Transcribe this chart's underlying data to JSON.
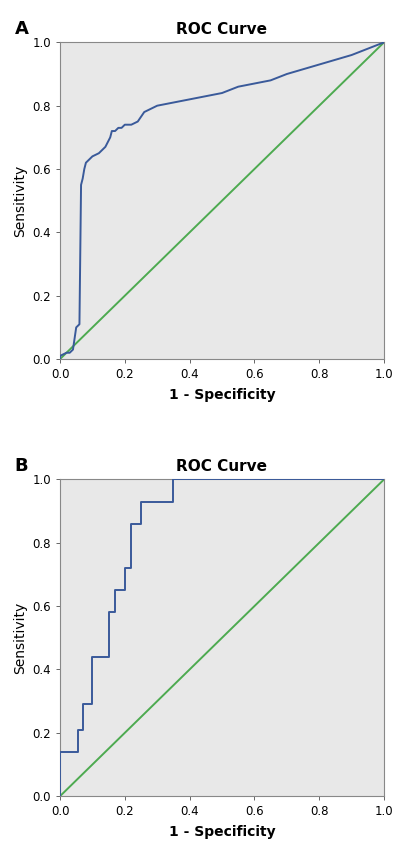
{
  "title": "ROC Curve",
  "xlabel": "1 - Specificity",
  "ylabel": "Sensitivity",
  "bg_color": "#e8e8e8",
  "curve_color": "#3a5a9a",
  "diag_color": "#4daa50",
  "curve_linewidth": 1.4,
  "diag_linewidth": 1.4,
  "label_A": "A",
  "label_B": "B",
  "roc_A_x": [
    0.0,
    0.0,
    0.02,
    0.03,
    0.04,
    0.05,
    0.06,
    0.065,
    0.07,
    0.075,
    0.08,
    0.09,
    0.1,
    0.12,
    0.14,
    0.155,
    0.16,
    0.17,
    0.18,
    0.19,
    0.2,
    0.22,
    0.24,
    0.26,
    0.28,
    0.3,
    0.35,
    0.4,
    0.45,
    0.5,
    0.55,
    0.6,
    0.65,
    0.7,
    0.8,
    0.9,
    1.0
  ],
  "roc_A_y": [
    0.0,
    0.01,
    0.02,
    0.02,
    0.03,
    0.1,
    0.11,
    0.55,
    0.57,
    0.6,
    0.62,
    0.63,
    0.64,
    0.65,
    0.67,
    0.7,
    0.72,
    0.72,
    0.73,
    0.73,
    0.74,
    0.74,
    0.75,
    0.78,
    0.79,
    0.8,
    0.81,
    0.82,
    0.83,
    0.84,
    0.86,
    0.87,
    0.88,
    0.9,
    0.93,
    0.96,
    1.0
  ],
  "roc_B_x": [
    0.0,
    0.0,
    0.055,
    0.055,
    0.07,
    0.07,
    0.1,
    0.1,
    0.15,
    0.15,
    0.17,
    0.17,
    0.2,
    0.2,
    0.22,
    0.22,
    0.25,
    0.25,
    0.35,
    0.35,
    0.4,
    0.4,
    0.42,
    0.42,
    0.6,
    0.6,
    1.0
  ],
  "roc_B_y": [
    0.0,
    0.14,
    0.14,
    0.21,
    0.21,
    0.29,
    0.29,
    0.44,
    0.44,
    0.58,
    0.58,
    0.65,
    0.65,
    0.72,
    0.72,
    0.86,
    0.86,
    0.93,
    0.93,
    1.0,
    1.0,
    1.0,
    1.0,
    1.0,
    1.0,
    1.0,
    1.0
  ],
  "xlim": [
    0.0,
    1.0
  ],
  "ylim": [
    0.0,
    1.0
  ],
  "xticks": [
    0.0,
    0.2,
    0.4,
    0.6,
    0.8,
    1.0
  ],
  "yticks": [
    0.0,
    0.2,
    0.4,
    0.6,
    0.8,
    1.0
  ],
  "tick_fontsize": 8.5,
  "axis_label_fontsize": 10,
  "title_fontsize": 11,
  "panel_label_fontsize": 13,
  "fig_bg": "#ffffff"
}
